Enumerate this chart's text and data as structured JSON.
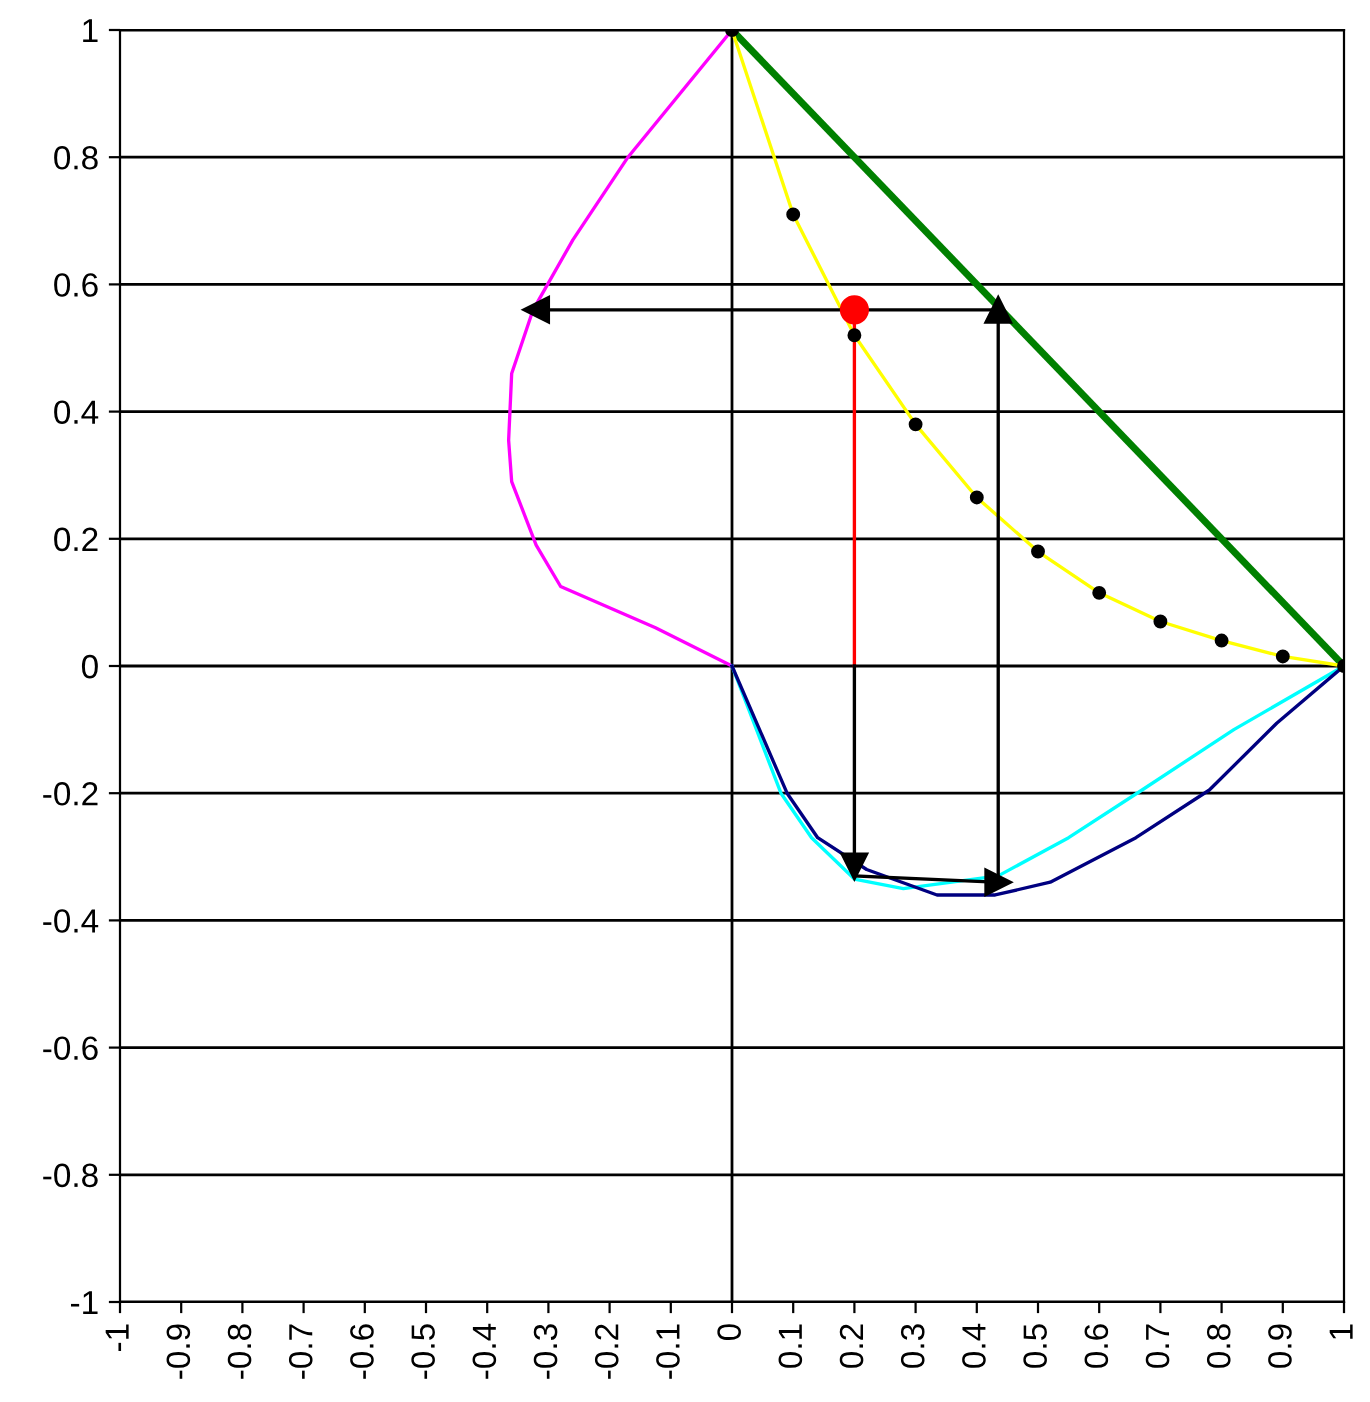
{
  "chart_data": {
    "type": "line",
    "xlim": [
      -1,
      1
    ],
    "ylim": [
      -1,
      1
    ],
    "xticks": [
      -1,
      -0.9,
      -0.8,
      -0.7,
      -0.6,
      -0.5,
      -0.4,
      -0.3,
      -0.2,
      -0.1,
      0,
      0.1,
      0.2,
      0.3,
      0.4,
      0.5,
      0.6,
      0.7,
      0.8,
      0.9,
      1
    ],
    "yticks": [
      -1,
      -0.8,
      -0.6,
      -0.4,
      -0.2,
      0,
      0.2,
      0.4,
      0.6,
      0.8,
      1
    ],
    "grid": "y",
    "legend": false,
    "line_style": "solid",
    "ref_lines": [
      {
        "axis": "x",
        "value": 0,
        "label": null,
        "color": "#000000"
      }
    ],
    "series": [
      {
        "color": "#ff00ff",
        "x": [
          0,
          -0.17,
          -0.26,
          -0.325,
          -0.36,
          -0.365,
          -0.36,
          -0.32,
          -0.28,
          -0.125,
          0
        ],
        "values": [
          1,
          0.8,
          0.67,
          0.56,
          0.46,
          0.355,
          0.29,
          0.19,
          0.125,
          0.06,
          0
        ]
      },
      {
        "color": "#00ffff",
        "x": [
          0,
          0.08,
          0.13,
          0.2,
          0.28,
          0.435,
          0.55,
          0.67,
          0.82,
          1
        ],
        "values": [
          0,
          -0.2,
          -0.27,
          -0.335,
          -0.35,
          -0.33,
          -0.27,
          -0.195,
          -0.1,
          0
        ]
      },
      {
        "color": "#000080",
        "x": [
          0,
          0.09,
          0.14,
          0.22,
          0.335,
          0.43,
          0.52,
          0.66,
          0.78,
          0.89,
          1
        ],
        "values": [
          0,
          -0.2,
          -0.27,
          -0.32,
          -0.36,
          -0.36,
          -0.34,
          -0.27,
          -0.195,
          -0.09,
          0
        ]
      },
      {
        "color": "#008000",
        "x": [
          0,
          1
        ],
        "values": [
          1,
          0
        ]
      },
      {
        "color": "#ffff00",
        "x": [
          0,
          0.1,
          0.2,
          0.3,
          0.4,
          0.5,
          0.6,
          0.7,
          0.8,
          0.9,
          1
        ],
        "values": [
          1,
          0.71,
          0.52,
          0.38,
          0.265,
          0.18,
          0.115,
          0.07,
          0.04,
          0.015,
          0
        ]
      },
      {
        "type": "scatter",
        "marker": "circle",
        "color": "#000000",
        "x": [
          0,
          0.1,
          0.2,
          0.3,
          0.4,
          0.5,
          0.6,
          0.7,
          0.8,
          0.9,
          1
        ],
        "values": [
          1,
          0.71,
          0.52,
          0.38,
          0.265,
          0.18,
          0.115,
          0.07,
          0.04,
          0.015,
          0
        ]
      },
      {
        "color": "#ff0000",
        "x": [
          0.2,
          0.2
        ],
        "values": [
          0,
          0.56
        ]
      },
      {
        "marker": "triangle",
        "color": "#000000",
        "x": [
          0.2,
          0.2
        ],
        "values": [
          0,
          -0.315
        ]
      },
      {
        "marker": "triangle",
        "color": "#000000",
        "x": [
          0.2,
          0.435
        ],
        "values": [
          -0.33,
          -0.34
        ]
      },
      {
        "marker": "triangle",
        "color": "#000000",
        "x": [
          0.435,
          0.435
        ],
        "values": [
          -0.34,
          0.56
        ]
      },
      {
        "marker": "triangle",
        "color": "#000000",
        "x": [
          0.435,
          -0.32
        ],
        "values": [
          0.56,
          0.56
        ]
      },
      {
        "type": "scatter",
        "marker": "circle",
        "color": "#ff0000",
        "x": [
          0.2
        ],
        "values": [
          0.56
        ]
      }
    ]
  }
}
